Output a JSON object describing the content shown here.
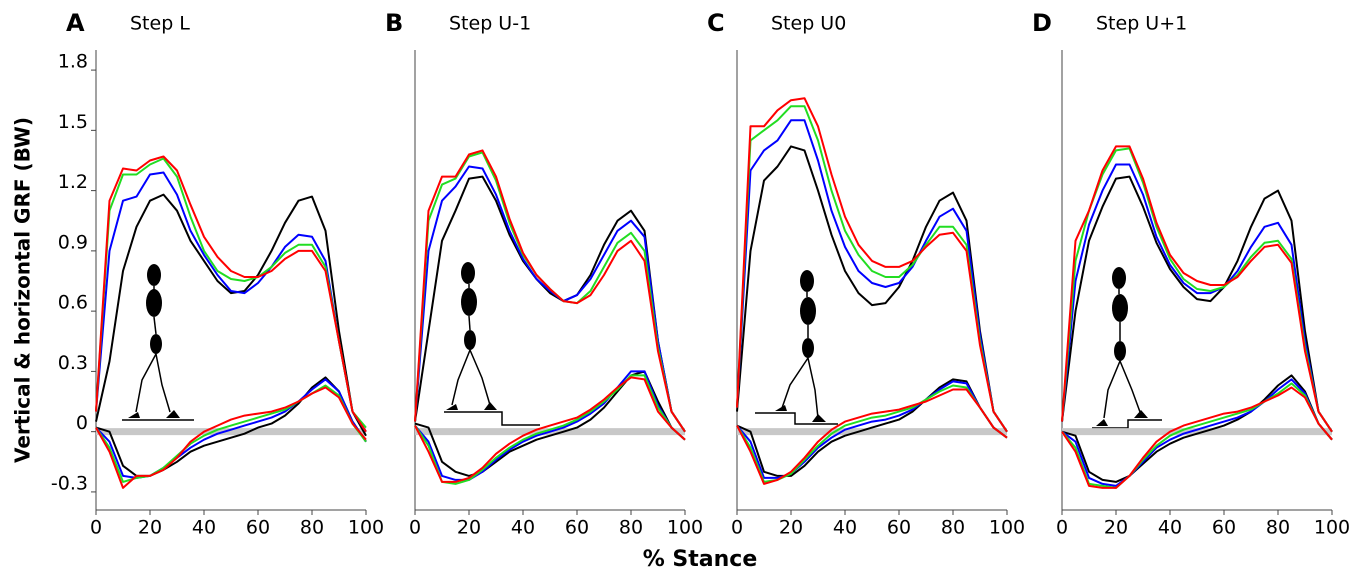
{
  "ylabel": "Vertical & horizontal GRF (BW)",
  "xlabel": "% Stance",
  "chart_data": [
    {
      "type": "line",
      "panel_label": "A",
      "title": "Step L",
      "x": [
        0,
        5,
        10,
        15,
        20,
        25,
        30,
        35,
        40,
        45,
        50,
        55,
        60,
        65,
        70,
        75,
        80,
        85,
        90,
        95,
        100
      ],
      "xlim": [
        0,
        100
      ],
      "xticks": [
        0,
        20,
        40,
        60,
        80,
        100
      ],
      "ylim": [
        -0.39,
        1.9
      ],
      "yticks": [
        -0.3,
        0,
        0.3,
        0.6,
        0.9,
        1.2,
        1.5,
        1.8
      ],
      "series": [
        {
          "color": "#000000",
          "values": [
            0.05,
            0.35,
            0.8,
            1.02,
            1.15,
            1.18,
            1.1,
            0.95,
            0.85,
            0.75,
            0.69,
            0.7,
            0.78,
            0.9,
            1.04,
            1.15,
            1.17,
            1.0,
            0.5,
            0.1,
            -0.02
          ]
        },
        {
          "color": "#0000ff",
          "values": [
            0.1,
            0.9,
            1.15,
            1.17,
            1.28,
            1.29,
            1.18,
            1.0,
            0.88,
            0.78,
            0.7,
            0.69,
            0.74,
            0.82,
            0.92,
            0.98,
            0.97,
            0.85,
            0.45,
            0.1,
            0.0
          ]
        },
        {
          "color": "#22dd22",
          "values": [
            0.1,
            1.1,
            1.28,
            1.28,
            1.33,
            1.36,
            1.27,
            1.07,
            0.9,
            0.8,
            0.76,
            0.75,
            0.77,
            0.82,
            0.89,
            0.93,
            0.93,
            0.82,
            0.45,
            0.1,
            0.02
          ]
        },
        {
          "color": "#ff0000",
          "values": [
            0.1,
            1.15,
            1.31,
            1.3,
            1.35,
            1.37,
            1.3,
            1.13,
            0.97,
            0.87,
            0.8,
            0.77,
            0.77,
            0.8,
            0.86,
            0.9,
            0.9,
            0.8,
            0.45,
            0.1,
            0.0
          ]
        },
        {
          "color": "#000000",
          "values": [
            0.02,
            0.0,
            -0.17,
            -0.22,
            -0.22,
            -0.19,
            -0.15,
            -0.1,
            -0.07,
            -0.05,
            -0.03,
            -0.01,
            0.02,
            0.04,
            0.08,
            0.14,
            0.22,
            0.27,
            0.2,
            0.05,
            -0.05
          ]
        },
        {
          "color": "#0000ff",
          "values": [
            0.02,
            -0.05,
            -0.22,
            -0.23,
            -0.22,
            -0.18,
            -0.13,
            -0.08,
            -0.04,
            -0.01,
            0.01,
            0.03,
            0.05,
            0.07,
            0.1,
            0.15,
            0.21,
            0.26,
            0.2,
            0.05,
            -0.05
          ]
        },
        {
          "color": "#22dd22",
          "values": [
            0.02,
            -0.08,
            -0.25,
            -0.23,
            -0.22,
            -0.18,
            -0.12,
            -0.06,
            -0.02,
            0.01,
            0.03,
            0.05,
            0.07,
            0.09,
            0.11,
            0.15,
            0.19,
            0.23,
            0.18,
            0.04,
            -0.05
          ]
        },
        {
          "color": "#ff0000",
          "values": [
            0.02,
            -0.1,
            -0.28,
            -0.22,
            -0.22,
            -0.19,
            -0.13,
            -0.05,
            0.0,
            0.03,
            0.06,
            0.08,
            0.09,
            0.1,
            0.12,
            0.15,
            0.19,
            0.22,
            0.17,
            0.04,
            -0.04
          ]
        }
      ]
    },
    {
      "type": "line",
      "panel_label": "B",
      "title": "Step U-1",
      "x": [
        0,
        5,
        10,
        15,
        20,
        25,
        30,
        35,
        40,
        45,
        50,
        55,
        60,
        65,
        70,
        75,
        80,
        85,
        90,
        95,
        100
      ],
      "xlim": [
        0,
        100
      ],
      "xticks": [
        0,
        20,
        40,
        60,
        80,
        100
      ],
      "ylim": [
        -0.39,
        1.9
      ],
      "series": [
        {
          "color": "#000000",
          "values": [
            0.05,
            0.5,
            0.95,
            1.1,
            1.26,
            1.27,
            1.15,
            0.98,
            0.85,
            0.76,
            0.69,
            0.65,
            0.68,
            0.78,
            0.93,
            1.05,
            1.1,
            1.0,
            0.45,
            0.1,
            0.0
          ]
        },
        {
          "color": "#0000ff",
          "values": [
            0.05,
            0.9,
            1.15,
            1.22,
            1.32,
            1.31,
            1.18,
            1.0,
            0.86,
            0.76,
            0.7,
            0.65,
            0.68,
            0.76,
            0.88,
            1.0,
            1.05,
            0.97,
            0.45,
            0.1,
            0.0
          ]
        },
        {
          "color": "#22dd22",
          "values": [
            0.05,
            1.05,
            1.23,
            1.26,
            1.37,
            1.39,
            1.25,
            1.04,
            0.88,
            0.78,
            0.71,
            0.65,
            0.64,
            0.7,
            0.82,
            0.94,
            0.99,
            0.9,
            0.42,
            0.1,
            0.0
          ]
        },
        {
          "color": "#ff0000",
          "values": [
            0.05,
            1.1,
            1.27,
            1.27,
            1.38,
            1.4,
            1.27,
            1.06,
            0.89,
            0.78,
            0.71,
            0.65,
            0.64,
            0.68,
            0.78,
            0.9,
            0.95,
            0.85,
            0.4,
            0.1,
            0.0
          ]
        },
        {
          "color": "#000000",
          "values": [
            0.04,
            0.02,
            -0.15,
            -0.2,
            -0.22,
            -0.2,
            -0.15,
            -0.1,
            -0.07,
            -0.04,
            -0.02,
            0.0,
            0.02,
            0.06,
            0.12,
            0.2,
            0.28,
            0.3,
            0.15,
            0.02,
            -0.04
          ]
        },
        {
          "color": "#0000ff",
          "values": [
            0.03,
            -0.05,
            -0.22,
            -0.24,
            -0.24,
            -0.2,
            -0.14,
            -0.09,
            -0.05,
            -0.02,
            0.0,
            0.02,
            0.05,
            0.09,
            0.14,
            0.22,
            0.3,
            0.3,
            0.13,
            0.02,
            -0.04
          ]
        },
        {
          "color": "#22dd22",
          "values": [
            0.03,
            -0.07,
            -0.25,
            -0.26,
            -0.24,
            -0.19,
            -0.13,
            -0.08,
            -0.04,
            -0.01,
            0.01,
            0.03,
            0.06,
            0.1,
            0.15,
            0.21,
            0.28,
            0.28,
            0.12,
            0.02,
            -0.04
          ]
        },
        {
          "color": "#ff0000",
          "values": [
            0.03,
            -0.1,
            -0.25,
            -0.25,
            -0.23,
            -0.18,
            -0.11,
            -0.06,
            -0.02,
            0.01,
            0.03,
            0.05,
            0.07,
            0.11,
            0.16,
            0.22,
            0.27,
            0.26,
            0.1,
            0.02,
            -0.04
          ]
        }
      ]
    },
    {
      "type": "line",
      "panel_label": "C",
      "title": "Step U0",
      "x": [
        0,
        5,
        10,
        15,
        20,
        25,
        30,
        35,
        40,
        45,
        50,
        55,
        60,
        65,
        70,
        75,
        80,
        85,
        90,
        95,
        100
      ],
      "xlim": [
        0,
        100
      ],
      "xticks": [
        0,
        20,
        40,
        60,
        80,
        100
      ],
      "ylim": [
        -0.39,
        1.9
      ],
      "series": [
        {
          "color": "#000000",
          "values": [
            0.1,
            0.9,
            1.25,
            1.32,
            1.42,
            1.4,
            1.2,
            0.98,
            0.8,
            0.69,
            0.63,
            0.64,
            0.72,
            0.85,
            1.02,
            1.15,
            1.19,
            1.05,
            0.5,
            0.1,
            0.0
          ]
        },
        {
          "color": "#0000ff",
          "values": [
            0.12,
            1.3,
            1.4,
            1.45,
            1.55,
            1.55,
            1.35,
            1.1,
            0.92,
            0.8,
            0.74,
            0.72,
            0.74,
            0.82,
            0.95,
            1.07,
            1.11,
            1.0,
            0.48,
            0.1,
            0.0
          ]
        },
        {
          "color": "#22dd22",
          "values": [
            0.12,
            1.45,
            1.5,
            1.55,
            1.62,
            1.62,
            1.45,
            1.2,
            1.0,
            0.88,
            0.8,
            0.77,
            0.77,
            0.83,
            0.93,
            1.02,
            1.02,
            0.93,
            0.45,
            0.1,
            0.0
          ]
        },
        {
          "color": "#ff0000",
          "values": [
            0.12,
            1.52,
            1.52,
            1.6,
            1.65,
            1.66,
            1.52,
            1.28,
            1.07,
            0.93,
            0.85,
            0.82,
            0.82,
            0.85,
            0.92,
            0.98,
            0.99,
            0.9,
            0.43,
            0.1,
            0.0
          ]
        },
        {
          "color": "#000000",
          "values": [
            0.03,
            0.0,
            -0.2,
            -0.22,
            -0.22,
            -0.17,
            -0.1,
            -0.05,
            -0.02,
            0.0,
            0.02,
            0.04,
            0.06,
            0.1,
            0.16,
            0.22,
            0.26,
            0.25,
            0.12,
            0.02,
            -0.03
          ]
        },
        {
          "color": "#0000ff",
          "values": [
            0.03,
            -0.05,
            -0.23,
            -0.23,
            -0.21,
            -0.15,
            -0.08,
            -0.03,
            0.01,
            0.03,
            0.05,
            0.06,
            0.08,
            0.11,
            0.16,
            0.21,
            0.25,
            0.24,
            0.12,
            0.02,
            -0.03
          ]
        },
        {
          "color": "#22dd22",
          "values": [
            0.03,
            -0.08,
            -0.25,
            -0.24,
            -0.21,
            -0.14,
            -0.07,
            -0.01,
            0.03,
            0.05,
            0.07,
            0.08,
            0.1,
            0.12,
            0.16,
            0.2,
            0.23,
            0.22,
            0.12,
            0.02,
            -0.03
          ]
        },
        {
          "color": "#ff0000",
          "values": [
            0.03,
            -0.1,
            -0.26,
            -0.24,
            -0.2,
            -0.13,
            -0.05,
            0.01,
            0.05,
            0.07,
            0.09,
            0.1,
            0.11,
            0.13,
            0.15,
            0.18,
            0.21,
            0.21,
            0.12,
            0.02,
            -0.03
          ]
        }
      ]
    },
    {
      "type": "line",
      "panel_label": "D",
      "title": "Step U+1",
      "x": [
        0,
        5,
        10,
        15,
        20,
        25,
        30,
        35,
        40,
        45,
        50,
        55,
        60,
        65,
        70,
        75,
        80,
        85,
        90,
        95,
        100
      ],
      "xlim": [
        0,
        100
      ],
      "xticks": [
        0,
        20,
        40,
        60,
        80,
        100
      ],
      "ylim": [
        -0.39,
        1.9
      ],
      "series": [
        {
          "color": "#000000",
          "values": [
            0.05,
            0.6,
            0.95,
            1.12,
            1.26,
            1.27,
            1.12,
            0.94,
            0.81,
            0.72,
            0.66,
            0.65,
            0.72,
            0.85,
            1.02,
            1.16,
            1.2,
            1.05,
            0.5,
            0.1,
            0.0
          ]
        },
        {
          "color": "#0000ff",
          "values": [
            0.05,
            0.75,
            1.03,
            1.2,
            1.33,
            1.33,
            1.18,
            0.97,
            0.83,
            0.74,
            0.69,
            0.69,
            0.72,
            0.8,
            0.92,
            1.02,
            1.04,
            0.93,
            0.45,
            0.1,
            0.0
          ]
        },
        {
          "color": "#22dd22",
          "values": [
            0.05,
            0.85,
            1.1,
            1.28,
            1.4,
            1.41,
            1.24,
            1.02,
            0.86,
            0.76,
            0.71,
            0.7,
            0.72,
            0.78,
            0.87,
            0.94,
            0.95,
            0.86,
            0.42,
            0.1,
            0.0
          ]
        },
        {
          "color": "#ff0000",
          "values": [
            0.05,
            0.95,
            1.1,
            1.3,
            1.42,
            1.42,
            1.26,
            1.04,
            0.88,
            0.79,
            0.75,
            0.73,
            0.73,
            0.77,
            0.85,
            0.92,
            0.93,
            0.84,
            0.4,
            0.1,
            0.0
          ]
        },
        {
          "color": "#000000",
          "values": [
            0.0,
            -0.02,
            -0.2,
            -0.24,
            -0.25,
            -0.22,
            -0.16,
            -0.1,
            -0.06,
            -0.03,
            -0.01,
            0.01,
            0.03,
            0.06,
            0.1,
            0.16,
            0.23,
            0.28,
            0.2,
            0.04,
            -0.04
          ]
        },
        {
          "color": "#0000ff",
          "values": [
            0.0,
            -0.05,
            -0.23,
            -0.26,
            -0.27,
            -0.22,
            -0.15,
            -0.08,
            -0.04,
            -0.01,
            0.01,
            0.03,
            0.05,
            0.07,
            0.1,
            0.15,
            0.21,
            0.26,
            0.19,
            0.04,
            -0.04
          ]
        },
        {
          "color": "#22dd22",
          "values": [
            0.0,
            -0.08,
            -0.26,
            -0.27,
            -0.28,
            -0.22,
            -0.14,
            -0.07,
            -0.02,
            0.01,
            0.03,
            0.05,
            0.07,
            0.09,
            0.11,
            0.15,
            0.19,
            0.24,
            0.18,
            0.04,
            -0.04
          ]
        },
        {
          "color": "#ff0000",
          "values": [
            0.0,
            -0.1,
            -0.27,
            -0.28,
            -0.28,
            -0.22,
            -0.13,
            -0.05,
            0.0,
            0.03,
            0.05,
            0.07,
            0.09,
            0.1,
            0.12,
            0.15,
            0.18,
            0.22,
            0.17,
            0.04,
            -0.04
          ]
        }
      ]
    }
  ]
}
